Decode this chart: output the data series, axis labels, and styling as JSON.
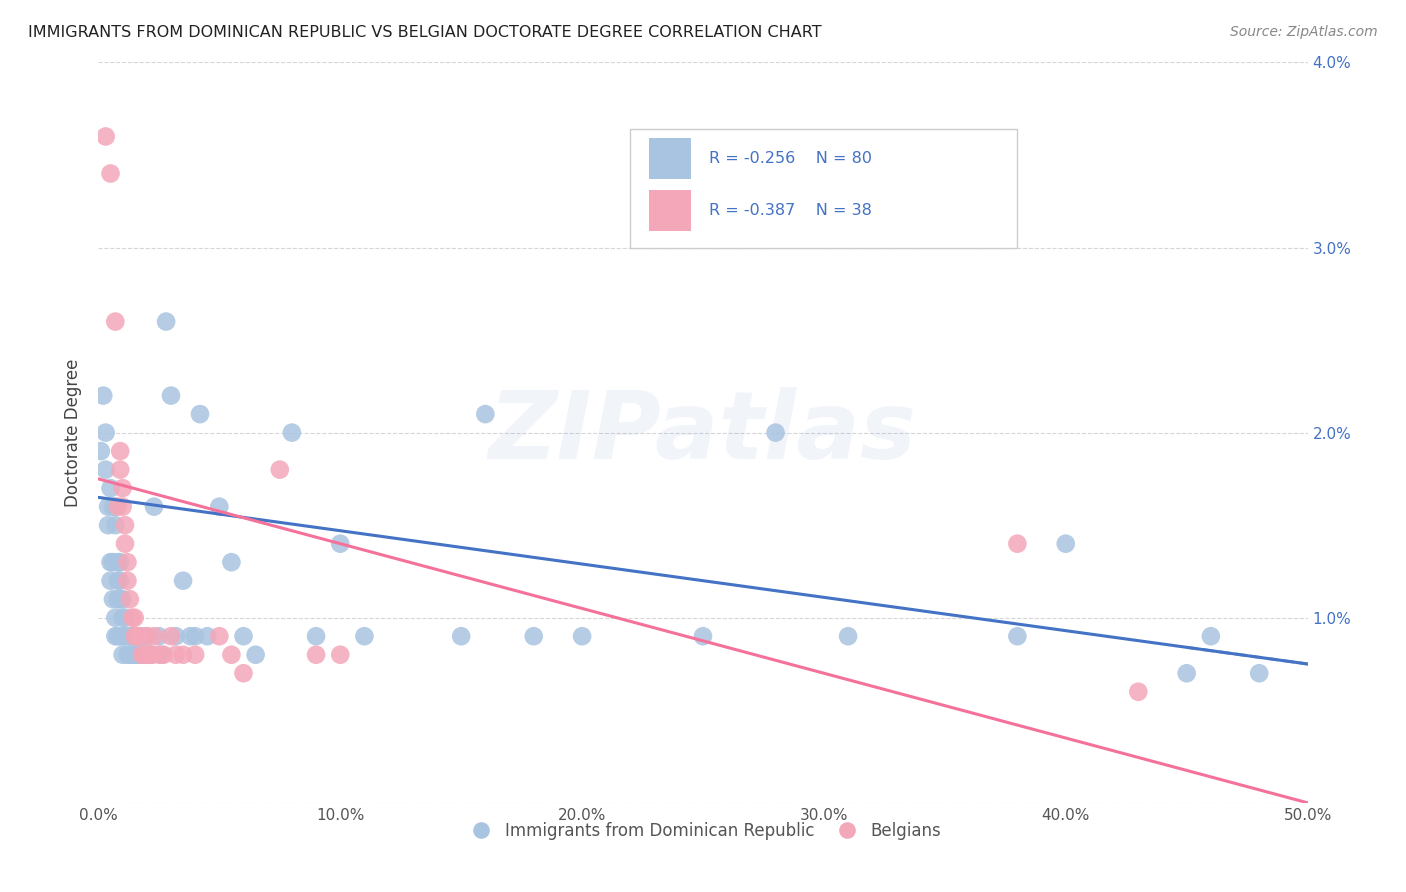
{
  "title": "IMMIGRANTS FROM DOMINICAN REPUBLIC VS BELGIAN DOCTORATE DEGREE CORRELATION CHART",
  "source": "Source: ZipAtlas.com",
  "ylabel": "Doctorate Degree",
  "xlim": [
    0.0,
    0.5
  ],
  "ylim": [
    0.0,
    0.04
  ],
  "xticks": [
    0.0,
    0.1,
    0.2,
    0.3,
    0.4,
    0.5
  ],
  "xticklabels": [
    "0.0%",
    "10.0%",
    "20.0%",
    "30.0%",
    "40.0%",
    "50.0%"
  ],
  "yticks": [
    0.0,
    0.01,
    0.02,
    0.03,
    0.04
  ],
  "yticklabels_right": [
    "",
    "1.0%",
    "2.0%",
    "3.0%",
    "4.0%"
  ],
  "blue_R": "-0.256",
  "blue_N": "80",
  "pink_R": "-0.387",
  "pink_N": "38",
  "blue_color": "#a8c4e0",
  "pink_color": "#f4a7b9",
  "blue_line_color": "#4472C4",
  "pink_line_color": "#F4729A",
  "watermark": "ZIPatlas",
  "blue_line_x0": 0.0,
  "blue_line_y0": 0.0165,
  "blue_line_x1": 0.5,
  "blue_line_y1": 0.0075,
  "pink_line_x0": 0.0,
  "pink_line_y0": 0.0175,
  "pink_line_x1": 0.5,
  "pink_line_y1": 0.0,
  "blue_points": [
    [
      0.001,
      0.019
    ],
    [
      0.002,
      0.022
    ],
    [
      0.003,
      0.018
    ],
    [
      0.003,
      0.02
    ],
    [
      0.004,
      0.016
    ],
    [
      0.004,
      0.015
    ],
    [
      0.005,
      0.013
    ],
    [
      0.005,
      0.012
    ],
    [
      0.005,
      0.017
    ],
    [
      0.006,
      0.013
    ],
    [
      0.006,
      0.011
    ],
    [
      0.006,
      0.016
    ],
    [
      0.007,
      0.01
    ],
    [
      0.007,
      0.009
    ],
    [
      0.007,
      0.016
    ],
    [
      0.007,
      0.015
    ],
    [
      0.008,
      0.013
    ],
    [
      0.008,
      0.012
    ],
    [
      0.008,
      0.011
    ],
    [
      0.008,
      0.009
    ],
    [
      0.009,
      0.013
    ],
    [
      0.009,
      0.012
    ],
    [
      0.009,
      0.011
    ],
    [
      0.009,
      0.009
    ],
    [
      0.01,
      0.011
    ],
    [
      0.01,
      0.009
    ],
    [
      0.01,
      0.01
    ],
    [
      0.01,
      0.008
    ],
    [
      0.011,
      0.01
    ],
    [
      0.011,
      0.009
    ],
    [
      0.012,
      0.009
    ],
    [
      0.012,
      0.008
    ],
    [
      0.013,
      0.009
    ],
    [
      0.013,
      0.008
    ],
    [
      0.014,
      0.009
    ],
    [
      0.014,
      0.008
    ],
    [
      0.015,
      0.009
    ],
    [
      0.015,
      0.008
    ],
    [
      0.016,
      0.009
    ],
    [
      0.016,
      0.008
    ],
    [
      0.017,
      0.009
    ],
    [
      0.017,
      0.008
    ],
    [
      0.018,
      0.009
    ],
    [
      0.018,
      0.008
    ],
    [
      0.019,
      0.008
    ],
    [
      0.02,
      0.009
    ],
    [
      0.02,
      0.008
    ],
    [
      0.021,
      0.008
    ],
    [
      0.022,
      0.008
    ],
    [
      0.023,
      0.016
    ],
    [
      0.025,
      0.009
    ],
    [
      0.026,
      0.008
    ],
    [
      0.028,
      0.026
    ],
    [
      0.03,
      0.022
    ],
    [
      0.032,
      0.009
    ],
    [
      0.035,
      0.012
    ],
    [
      0.038,
      0.009
    ],
    [
      0.04,
      0.009
    ],
    [
      0.042,
      0.021
    ],
    [
      0.045,
      0.009
    ],
    [
      0.05,
      0.016
    ],
    [
      0.055,
      0.013
    ],
    [
      0.06,
      0.009
    ],
    [
      0.065,
      0.008
    ],
    [
      0.08,
      0.02
    ],
    [
      0.09,
      0.009
    ],
    [
      0.1,
      0.014
    ],
    [
      0.11,
      0.009
    ],
    [
      0.15,
      0.009
    ],
    [
      0.16,
      0.021
    ],
    [
      0.18,
      0.009
    ],
    [
      0.2,
      0.009
    ],
    [
      0.25,
      0.009
    ],
    [
      0.28,
      0.02
    ],
    [
      0.31,
      0.009
    ],
    [
      0.38,
      0.009
    ],
    [
      0.4,
      0.014
    ],
    [
      0.45,
      0.007
    ],
    [
      0.46,
      0.009
    ],
    [
      0.48,
      0.007
    ]
  ],
  "pink_points": [
    [
      0.003,
      0.036
    ],
    [
      0.005,
      0.034
    ],
    [
      0.007,
      0.026
    ],
    [
      0.008,
      0.016
    ],
    [
      0.009,
      0.019
    ],
    [
      0.009,
      0.018
    ],
    [
      0.01,
      0.017
    ],
    [
      0.01,
      0.016
    ],
    [
      0.011,
      0.015
    ],
    [
      0.011,
      0.014
    ],
    [
      0.012,
      0.013
    ],
    [
      0.012,
      0.012
    ],
    [
      0.013,
      0.011
    ],
    [
      0.014,
      0.01
    ],
    [
      0.015,
      0.01
    ],
    [
      0.015,
      0.009
    ],
    [
      0.016,
      0.009
    ],
    [
      0.017,
      0.009
    ],
    [
      0.018,
      0.008
    ],
    [
      0.019,
      0.008
    ],
    [
      0.02,
      0.009
    ],
    [
      0.021,
      0.008
    ],
    [
      0.022,
      0.008
    ],
    [
      0.023,
      0.009
    ],
    [
      0.025,
      0.008
    ],
    [
      0.027,
      0.008
    ],
    [
      0.03,
      0.009
    ],
    [
      0.032,
      0.008
    ],
    [
      0.035,
      0.008
    ],
    [
      0.04,
      0.008
    ],
    [
      0.05,
      0.009
    ],
    [
      0.055,
      0.008
    ],
    [
      0.06,
      0.007
    ],
    [
      0.075,
      0.018
    ],
    [
      0.09,
      0.008
    ],
    [
      0.1,
      0.008
    ],
    [
      0.38,
      0.014
    ],
    [
      0.43,
      0.006
    ]
  ]
}
